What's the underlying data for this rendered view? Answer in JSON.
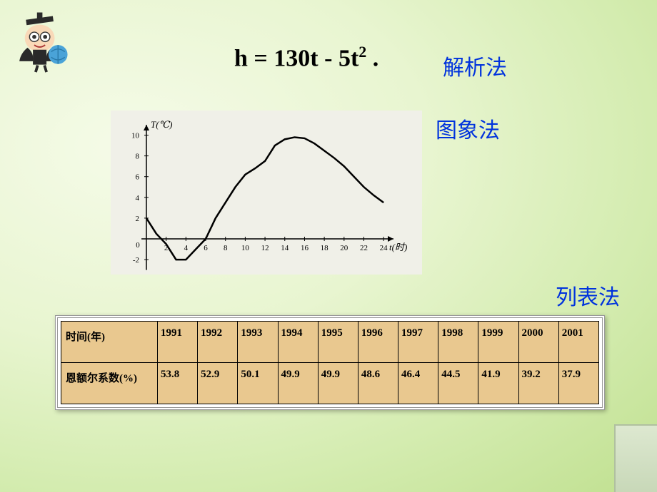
{
  "equation": {
    "lhs": "h",
    "eq": "=",
    "rhs_a": "130t",
    "rhs_minus": "-",
    "rhs_b": "5t",
    "exp": "2",
    "dot": "."
  },
  "labels": {
    "analytic": "解析法",
    "graph": "图象法",
    "table": "列表法"
  },
  "chart": {
    "type": "line",
    "ylabel": "T(℃)",
    "xlabel": "t(时)",
    "yticks": [
      -2,
      0,
      2,
      4,
      6,
      8,
      10
    ],
    "xticks": [
      0,
      2,
      4,
      6,
      8,
      10,
      12,
      14,
      16,
      18,
      20,
      22,
      24
    ],
    "ylim": [
      -3,
      11
    ],
    "xlim": [
      -1,
      25
    ],
    "line_color": "#000000",
    "line_width": 2.5,
    "axis_color": "#000000",
    "background": "#f0f0e8",
    "tick_fontsize": 11,
    "label_fontsize": 13,
    "points": [
      {
        "x": 0,
        "y": 2
      },
      {
        "x": 1,
        "y": 0.5
      },
      {
        "x": 2,
        "y": -0.5
      },
      {
        "x": 3,
        "y": -2
      },
      {
        "x": 4,
        "y": -2
      },
      {
        "x": 5,
        "y": -1
      },
      {
        "x": 6,
        "y": 0
      },
      {
        "x": 7,
        "y": 2
      },
      {
        "x": 8,
        "y": 3.5
      },
      {
        "x": 9,
        "y": 5
      },
      {
        "x": 10,
        "y": 6.2
      },
      {
        "x": 11,
        "y": 6.8
      },
      {
        "x": 12,
        "y": 7.5
      },
      {
        "x": 13,
        "y": 9
      },
      {
        "x": 14,
        "y": 9.6
      },
      {
        "x": 15,
        "y": 9.8
      },
      {
        "x": 16,
        "y": 9.7
      },
      {
        "x": 17,
        "y": 9.2
      },
      {
        "x": 18,
        "y": 8.5
      },
      {
        "x": 19,
        "y": 7.8
      },
      {
        "x": 20,
        "y": 7
      },
      {
        "x": 21,
        "y": 6
      },
      {
        "x": 22,
        "y": 5
      },
      {
        "x": 23,
        "y": 4.2
      },
      {
        "x": 24,
        "y": 3.5
      }
    ]
  },
  "table": {
    "header_row_label": "时间(年)",
    "value_row_label": "恩额尔系数(%)",
    "years": [
      "1991",
      "1992",
      "1993",
      "1994",
      "1995",
      "1996",
      "1997",
      "1998",
      "1999",
      "2000",
      "2001"
    ],
    "values": [
      "53.8",
      "52.9",
      "50.1",
      "49.9",
      "49.9",
      "48.6",
      "46.4",
      "44.5",
      "41.9",
      "39.2",
      "37.9"
    ],
    "cell_bg": "#e9c88f",
    "border_color": "#000000",
    "font_size": 15
  }
}
